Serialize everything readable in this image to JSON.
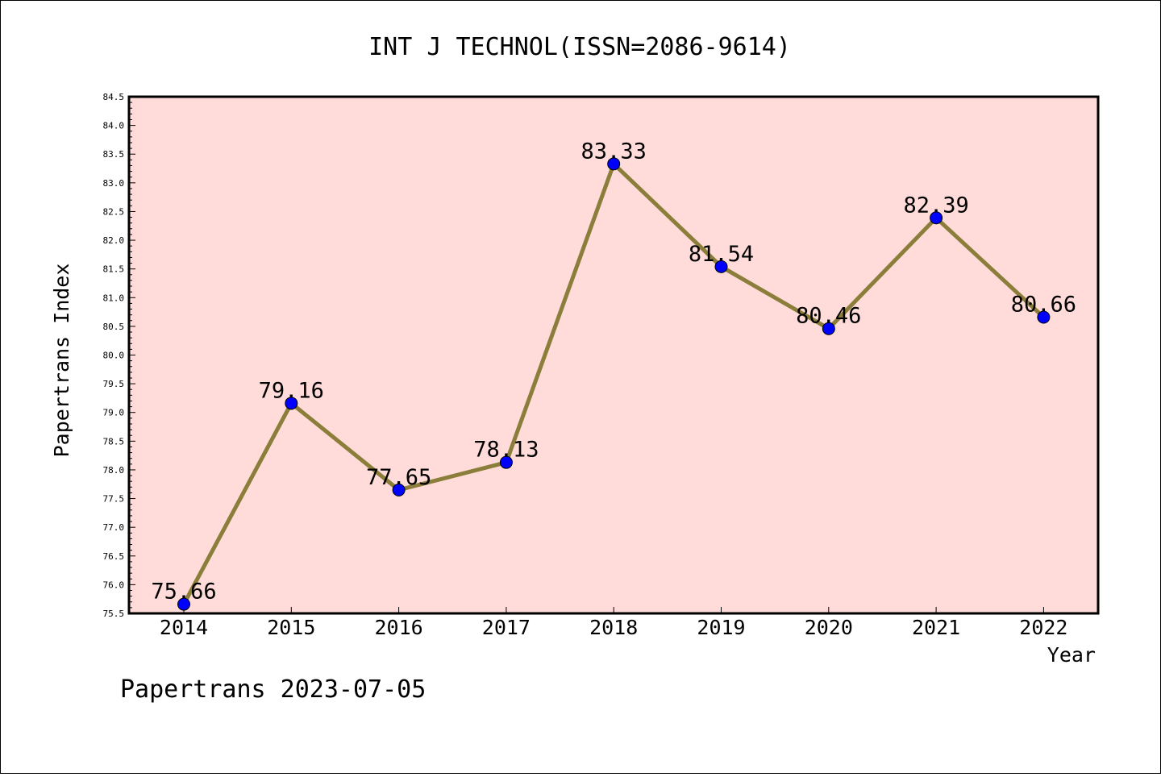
{
  "chart_data": {
    "type": "line",
    "title": "INT J TECHNOL(ISSN=2086-9614)",
    "xlabel": "Year",
    "ylabel": "Papertrans Index",
    "categories": [
      "2014",
      "2015",
      "2016",
      "2017",
      "2018",
      "2019",
      "2020",
      "2021",
      "2022"
    ],
    "series": [
      {
        "values": [
          75.66,
          79.16,
          77.65,
          78.13,
          83.33,
          81.54,
          80.46,
          82.39,
          80.66
        ],
        "labels": [
          "75.66",
          "79.16",
          "77.65",
          "78.13",
          "83.33",
          "81.54",
          "80.46",
          "82.39",
          "80.66"
        ]
      }
    ],
    "ylim": [
      75.5,
      84.5
    ],
    "yticks": [
      "75.5",
      "76.0",
      "76.5",
      "77.0",
      "77.5",
      "78.0",
      "78.5",
      "79.0",
      "79.5",
      "80.0",
      "80.5",
      "81.0",
      "81.5",
      "82.0",
      "82.5",
      "83.0",
      "83.5",
      "84.0",
      "84.5"
    ],
    "grid": false,
    "colors": {
      "plot_background": "#ffdcd9",
      "line": "#8b7d3a",
      "marker": "#0000ff"
    }
  },
  "footer": "Papertrans 2023-07-05"
}
